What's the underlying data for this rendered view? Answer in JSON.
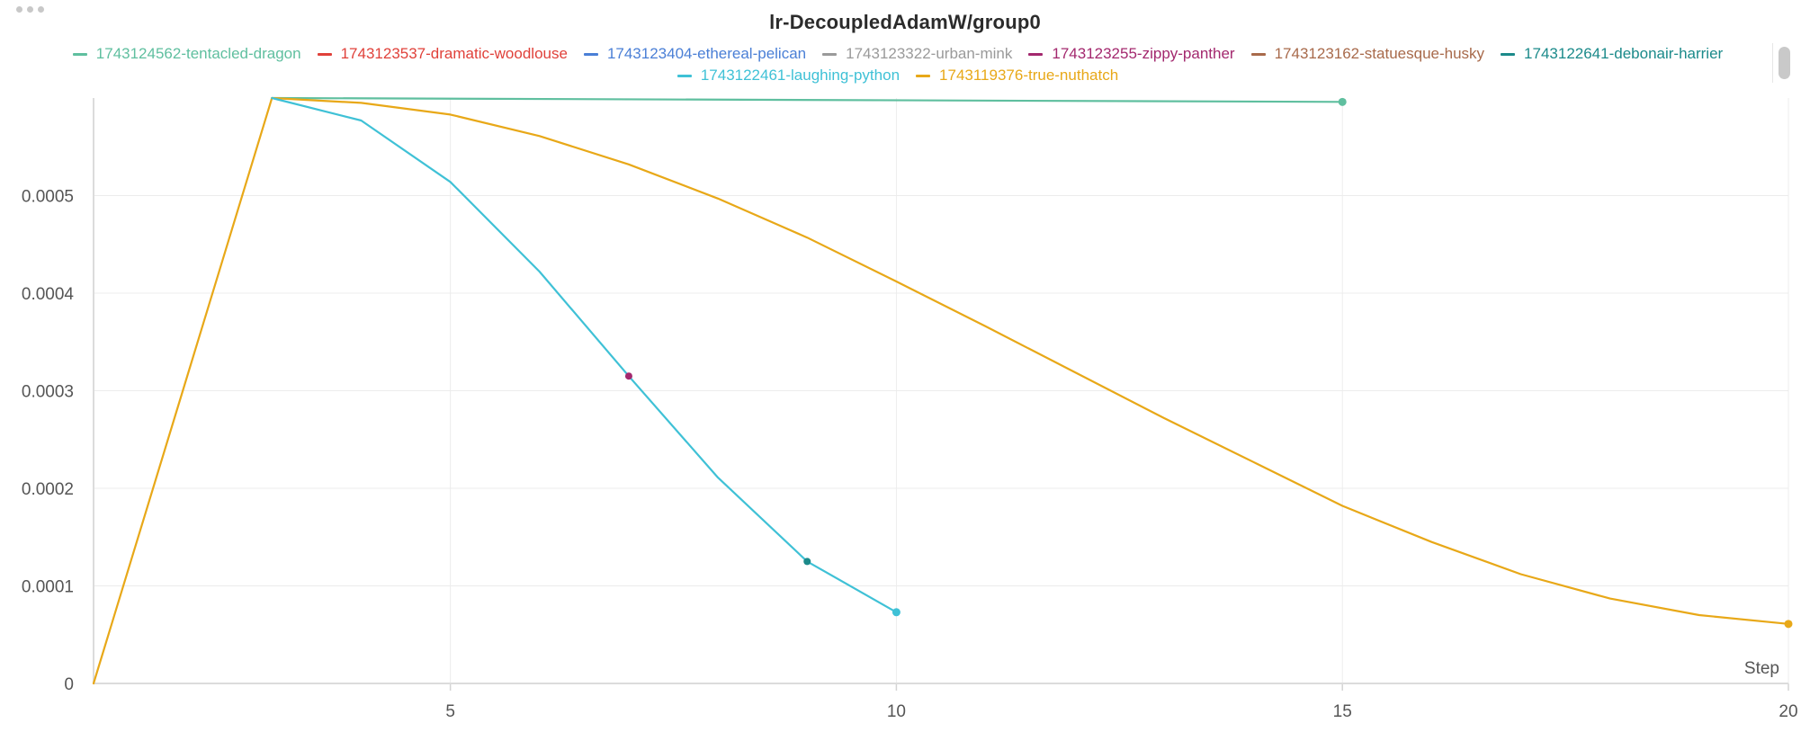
{
  "panel": {
    "title": "lr-DecoupledAdamW/group0"
  },
  "legend": {
    "rows": [
      [
        {
          "label": "1743124562-tentacled-dragon",
          "color": "#5fbf9f"
        },
        {
          "label": "1743123537-dramatic-woodlouse",
          "color": "#e0413a"
        },
        {
          "label": "1743123404-ethereal-pelican",
          "color": "#4a7fd6"
        },
        {
          "label": "1743123322-urban-mink",
          "color": "#9a9a9a"
        },
        {
          "label": "1743123255-zippy-panther",
          "color": "#a3286e"
        },
        {
          "label": "1743123162-statuesque-husky",
          "color": "#a86a4b"
        },
        {
          "label": "1743122641-debonair-harrier",
          "color": "#1b8a8a"
        }
      ],
      [
        {
          "label": "1743122461-laughing-python",
          "color": "#3fc1d6"
        },
        {
          "label": "1743119376-true-nuthatch",
          "color": "#e8a818"
        }
      ]
    ]
  },
  "chart_data": {
    "type": "line",
    "title": "lr-DecoupledAdamW/group0",
    "xlabel": "Step",
    "ylabel": "",
    "xlim": [
      1,
      20
    ],
    "ylim": [
      0,
      0.0006
    ],
    "grid": true,
    "x_ticks": [
      5,
      10,
      15,
      20
    ],
    "y_ticks": [
      0,
      0.0001,
      0.0002,
      0.0003,
      0.0004,
      0.0005
    ],
    "y_tick_labels": [
      "0",
      "0.0001",
      "0.0002",
      "0.0003",
      "0.0004",
      "0.0005"
    ],
    "series": [
      {
        "name": "1743124562-tentacled-dragon",
        "color": "#5fbf9f",
        "x": [
          3,
          15
        ],
        "y": [
          0.0006,
          0.000596
        ],
        "end_marker": true
      },
      {
        "name": "1743119376-true-nuthatch",
        "color": "#e8a818",
        "x": [
          1,
          2,
          3,
          4,
          5,
          6,
          7,
          8,
          9,
          10,
          11,
          12,
          13,
          14,
          15,
          16,
          17,
          18,
          19,
          20
        ],
        "y": [
          0,
          0.0003,
          0.0006,
          0.000595,
          0.000583,
          0.000561,
          0.000532,
          0.000497,
          0.000457,
          0.000412,
          0.000366,
          0.000319,
          0.000272,
          0.000227,
          0.000182,
          0.000145,
          0.000112,
          8.7e-05,
          7e-05,
          6.1e-05
        ],
        "end_marker": true
      },
      {
        "name": "1743122461-laughing-python",
        "color": "#3fc1d6",
        "x": [
          3,
          4,
          5,
          6,
          7,
          8,
          9,
          10
        ],
        "y": [
          0.0006,
          0.000577,
          0.000514,
          0.000422,
          0.000315,
          0.000211,
          0.000125,
          7.3e-05
        ],
        "end_marker": true
      }
    ],
    "point_markers": [
      {
        "series": "1743123255-zippy-panther",
        "color": "#a3286e",
        "x": 7,
        "y": 0.000315
      },
      {
        "series": "1743122641-debonair-harrier",
        "color": "#1b8a8a",
        "x": 9,
        "y": 0.000125
      }
    ]
  }
}
